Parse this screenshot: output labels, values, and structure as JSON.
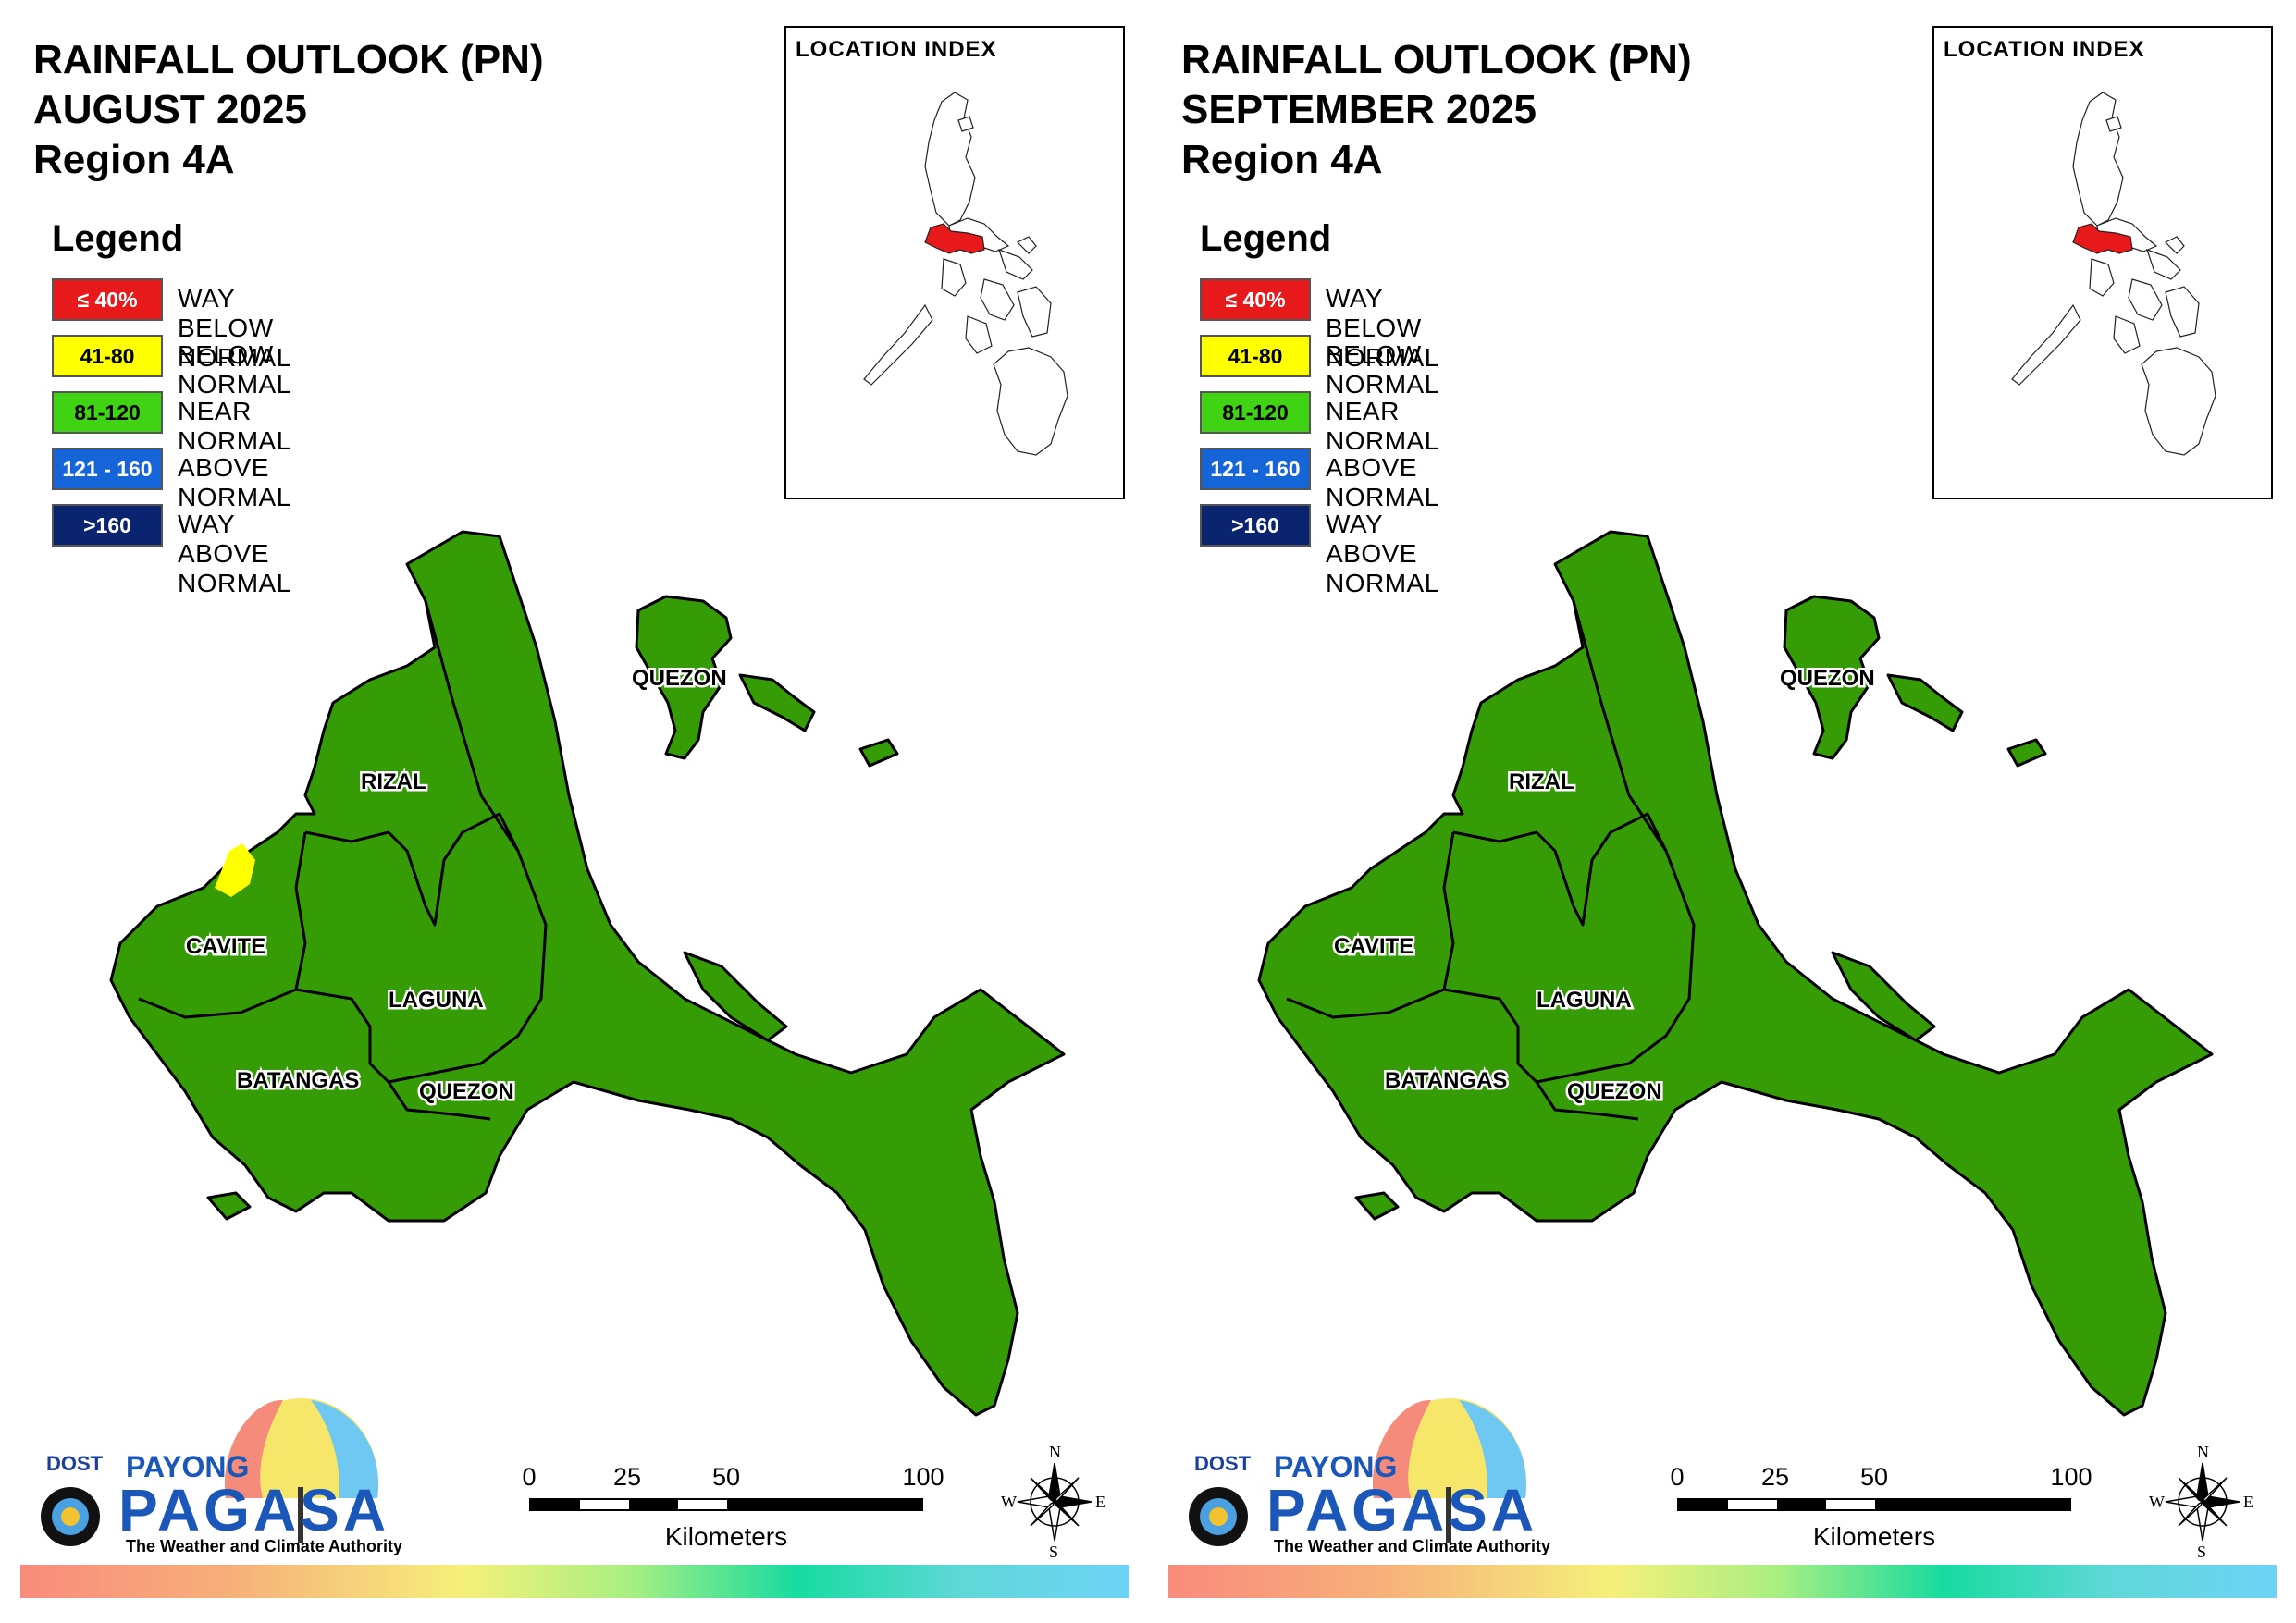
{
  "panels": [
    {
      "title_line1": "RAINFALL OUTLOOK (PN)",
      "title_line2": "AUGUST 2025",
      "title_line3": "Region 4A",
      "cavite_patch": "below-normal"
    },
    {
      "title_line1": "RAINFALL OUTLOOK (PN)",
      "title_line2": "SEPTEMBER 2025",
      "title_line3": "Region 4A",
      "cavite_patch": "none"
    }
  ],
  "legend": {
    "title": "Legend",
    "items": [
      {
        "range": "≤ 40%",
        "label": "WAY BELOW NORMAL",
        "color": "#e8191b",
        "text_color": "#ffffff"
      },
      {
        "range": "41-80",
        "label": "BELOW NORMAL",
        "color": "#ffff00",
        "text_color": "#000000"
      },
      {
        "range": "81-120",
        "label": "NEAR NORMAL",
        "color": "#3fd313",
        "text_color": "#000000"
      },
      {
        "range": "121 - 160",
        "label": "ABOVE NORMAL",
        "color": "#1565d8",
        "text_color": "#ffffff"
      },
      {
        "range": ">160",
        "label": "WAY ABOVE NORMAL",
        "color": "#0b2470",
        "text_color": "#ffffff"
      }
    ]
  },
  "inset": {
    "title": "LOCATION INDEX",
    "highlight_color": "#e8191b"
  },
  "map": {
    "fill_color": "#359c06",
    "labels": {
      "quezon_north": "QUEZON",
      "rizal": "RIZAL",
      "cavite": "CAVITE",
      "laguna": "LAGUNA",
      "batangas": "BATANGAS",
      "quezon_south": "QUEZON"
    }
  },
  "scale": {
    "ticks": [
      "0",
      "25",
      "50",
      "100"
    ],
    "unit": "Kilometers"
  },
  "compass": {
    "n": "N",
    "s": "S",
    "e": "E",
    "w": "W"
  },
  "logo": {
    "dost": "DOST",
    "payong": "PAYONG",
    "pagasa": "PAGASA",
    "tagline": "The Weather and Climate Authority"
  }
}
